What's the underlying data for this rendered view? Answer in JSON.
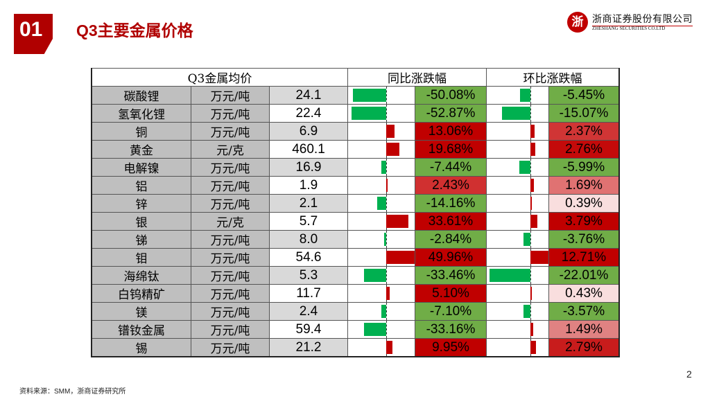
{
  "header": {
    "section_number": "01",
    "title": "Q3主要金属价格",
    "logo_cn": "浙商证券股份有限公司",
    "logo_en": "ZHESHANG SECURITIES CO.LTD"
  },
  "table": {
    "headers": {
      "price": "Q3金属均价",
      "yoy": "同比涨跌幅",
      "qoq": "环比涨跌幅"
    },
    "colors": {
      "green_bar": "#00b050",
      "green_cell": "#70ad47",
      "red_bar": "#c00000"
    },
    "rows": [
      {
        "name": "碳酸锂",
        "unit": "万元/吨",
        "price": "24.1",
        "yoy": -50.08,
        "yoy_label": "-50.08%",
        "qoq": -5.45,
        "qoq_label": "-5.45%",
        "yoy_bg": "#70ad47",
        "qoq_bg": "#70ad47"
      },
      {
        "name": "氢氧化锂",
        "unit": "万元/吨",
        "price": "22.4",
        "yoy": -52.87,
        "yoy_label": "-52.87%",
        "qoq": -15.07,
        "qoq_label": "-15.07%",
        "yoy_bg": "#70ad47",
        "qoq_bg": "#70ad47"
      },
      {
        "name": "铜",
        "unit": "万元/吨",
        "price": "6.9",
        "yoy": 13.06,
        "yoy_label": "13.06%",
        "qoq": 2.37,
        "qoq_label": "2.37%",
        "yoy_bg": "#c00000",
        "qoq_bg": "#d03535"
      },
      {
        "name": "黄金",
        "unit": "元/克",
        "price": "460.1",
        "yoy": 19.68,
        "yoy_label": "19.68%",
        "qoq": 2.76,
        "qoq_label": "2.76%",
        "yoy_bg": "#c00000",
        "qoq_bg": "#c40a0a"
      },
      {
        "name": "电解镍",
        "unit": "万元/吨",
        "price": "16.9",
        "yoy": -7.44,
        "yoy_label": "-7.44%",
        "qoq": -5.99,
        "qoq_label": "-5.99%",
        "yoy_bg": "#70ad47",
        "qoq_bg": "#70ad47"
      },
      {
        "name": "铝",
        "unit": "万元/吨",
        "price": "1.9",
        "yoy": 2.43,
        "yoy_label": "2.43%",
        "qoq": 1.69,
        "qoq_label": "1.69%",
        "yoy_bg": "#d03030",
        "qoq_bg": "#e07272"
      },
      {
        "name": "锌",
        "unit": "万元/吨",
        "price": "2.1",
        "yoy": -14.16,
        "yoy_label": "-14.16%",
        "qoq": 0.39,
        "qoq_label": "0.39%",
        "yoy_bg": "#70ad47",
        "qoq_bg": "#f9dede"
      },
      {
        "name": "银",
        "unit": "元/克",
        "price": "5.7",
        "yoy": 33.61,
        "yoy_label": "33.61%",
        "qoq": 3.79,
        "qoq_label": "3.79%",
        "yoy_bg": "#c00000",
        "qoq_bg": "#c00000"
      },
      {
        "name": "锑",
        "unit": "万元/吨",
        "price": "8.0",
        "yoy": -2.84,
        "yoy_label": "-2.84%",
        "qoq": -3.76,
        "qoq_label": "-3.76%",
        "yoy_bg": "#70ad47",
        "qoq_bg": "#70ad47"
      },
      {
        "name": "钼",
        "unit": "万元/吨",
        "price": "54.6",
        "yoy": 49.96,
        "yoy_label": "49.96%",
        "qoq": 12.71,
        "qoq_label": "12.71%",
        "yoy_bg": "#c00000",
        "qoq_bg": "#c00000"
      },
      {
        "name": "海绵钛",
        "unit": "万元/吨",
        "price": "5.3",
        "yoy": -33.46,
        "yoy_label": "-33.46%",
        "qoq": -22.01,
        "qoq_label": "-22.01%",
        "yoy_bg": "#70ad47",
        "qoq_bg": "#70ad47"
      },
      {
        "name": "白钨精矿",
        "unit": "万元/吨",
        "price": "11.7",
        "yoy": 5.1,
        "yoy_label": "5.10%",
        "qoq": 0.43,
        "qoq_label": "0.43%",
        "yoy_bg": "#c00000",
        "qoq_bg": "#f9dede"
      },
      {
        "name": "镁",
        "unit": "万元/吨",
        "price": "2.4",
        "yoy": -7.1,
        "yoy_label": "-7.10%",
        "qoq": -3.57,
        "qoq_label": "-3.57%",
        "yoy_bg": "#70ad47",
        "qoq_bg": "#70ad47"
      },
      {
        "name": "镨钕金属",
        "unit": "万元/吨",
        "price": "59.4",
        "yoy": -33.16,
        "yoy_label": "-33.16%",
        "qoq": 1.49,
        "qoq_label": "1.49%",
        "yoy_bg": "#70ad47",
        "qoq_bg": "#e08282"
      },
      {
        "name": "锡",
        "unit": "万元/吨",
        "price": "21.2",
        "yoy": 9.95,
        "yoy_label": "9.95%",
        "qoq": 2.79,
        "qoq_label": "2.79%",
        "yoy_bg": "#c00000",
        "qoq_bg": "#c81c1c"
      }
    ]
  },
  "footer": {
    "source": "资料来源：SMM，浙商证券研究所",
    "page": "2"
  }
}
